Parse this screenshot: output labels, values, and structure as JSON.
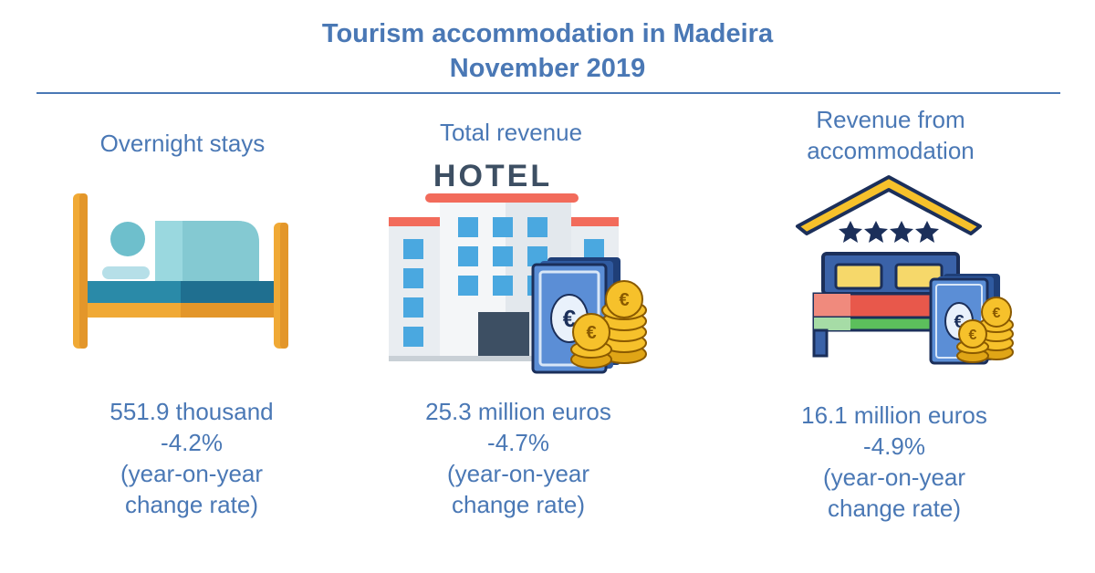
{
  "header": {
    "title_line1": "Tourism accommodation in Madeira",
    "title_line2": "November 2019"
  },
  "indicators": [
    {
      "label": "Overnight stays",
      "value": "551.9 thousand",
      "change": "-4.2%",
      "note_line1": "(year-on-year",
      "note_line2": "change rate)",
      "icon": "bed-icon"
    },
    {
      "label": "Total revenue",
      "value": "25.3 million euros",
      "change": "-4.7%",
      "note_line1": "(year-on-year",
      "note_line2": "change rate)",
      "icon": "hotel-money-icon",
      "sign_text": "HOTEL"
    },
    {
      "label_line1": "Revenue from",
      "label_line2": "accommodation",
      "value": "16.1 million euros",
      "change": "-4.9%",
      "note_line1": "(year-on-year",
      "note_line2": "change rate)",
      "icon": "accommodation-money-icon"
    }
  ],
  "colors": {
    "accent": "#4a78b5",
    "bed_frame": "#f0a935",
    "bed_blanket": "#86cfd6",
    "hotel_window": "#4aa8e0",
    "hotel_roof": "#f26b5b",
    "coin": "#f6c12b",
    "banknote": "#5b8ed6"
  }
}
